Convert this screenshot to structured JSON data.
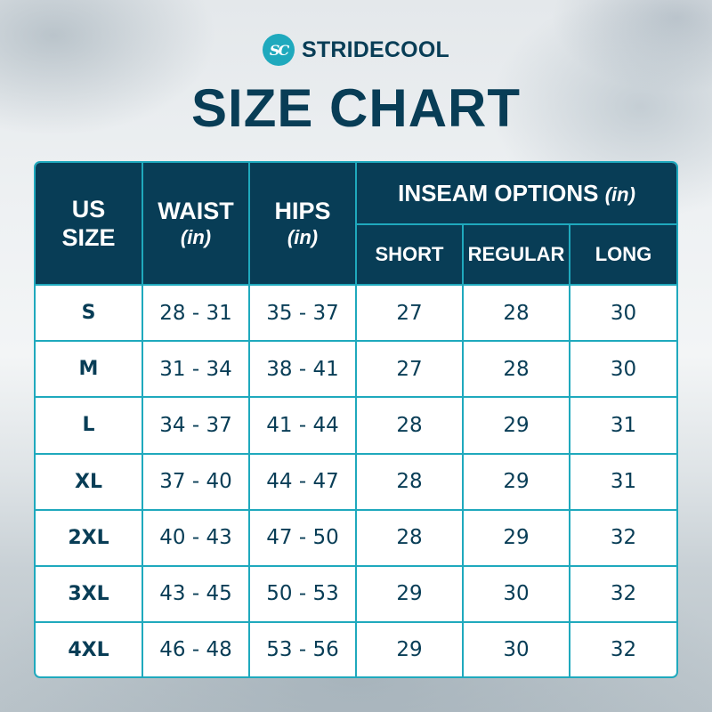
{
  "brand": {
    "logo_initials": "SC",
    "name": "STRIDECOOL"
  },
  "title": "SIZE CHART",
  "colors": {
    "navy": "#083d56",
    "teal": "#1fa9bd",
    "white": "#ffffff"
  },
  "table": {
    "headers": {
      "us_size": "US SIZE",
      "us": "US",
      "size": "SIZE",
      "waist": "WAIST",
      "waist_unit": "(in)",
      "hips": "HIPS",
      "hips_unit": "(in)",
      "inseam": "INSEAM OPTIONS",
      "inseam_unit": "(in)",
      "short": "SHORT",
      "regular": "REGULAR",
      "long": "LONG"
    },
    "rows": [
      {
        "size": "S",
        "waist": "28 - 31",
        "hips": "35 - 37",
        "short": "27",
        "regular": "28",
        "long": "30"
      },
      {
        "size": "M",
        "waist": "31 - 34",
        "hips": "38 - 41",
        "short": "27",
        "regular": "28",
        "long": "30"
      },
      {
        "size": "L",
        "waist": "34 - 37",
        "hips": "41 - 44",
        "short": "28",
        "regular": "29",
        "long": "31"
      },
      {
        "size": "XL",
        "waist": "37 - 40",
        "hips": "44 - 47",
        "short": "28",
        "regular": "29",
        "long": "31"
      },
      {
        "size": "2XL",
        "waist": "40 - 43",
        "hips": "47 - 50",
        "short": "28",
        "regular": "29",
        "long": "32"
      },
      {
        "size": "3XL",
        "waist": "43 - 45",
        "hips": "50 - 53",
        "short": "29",
        "regular": "30",
        "long": "32"
      },
      {
        "size": "4XL",
        "waist": "46 - 48",
        "hips": "53 - 56",
        "short": "29",
        "regular": "30",
        "long": "32"
      }
    ]
  }
}
